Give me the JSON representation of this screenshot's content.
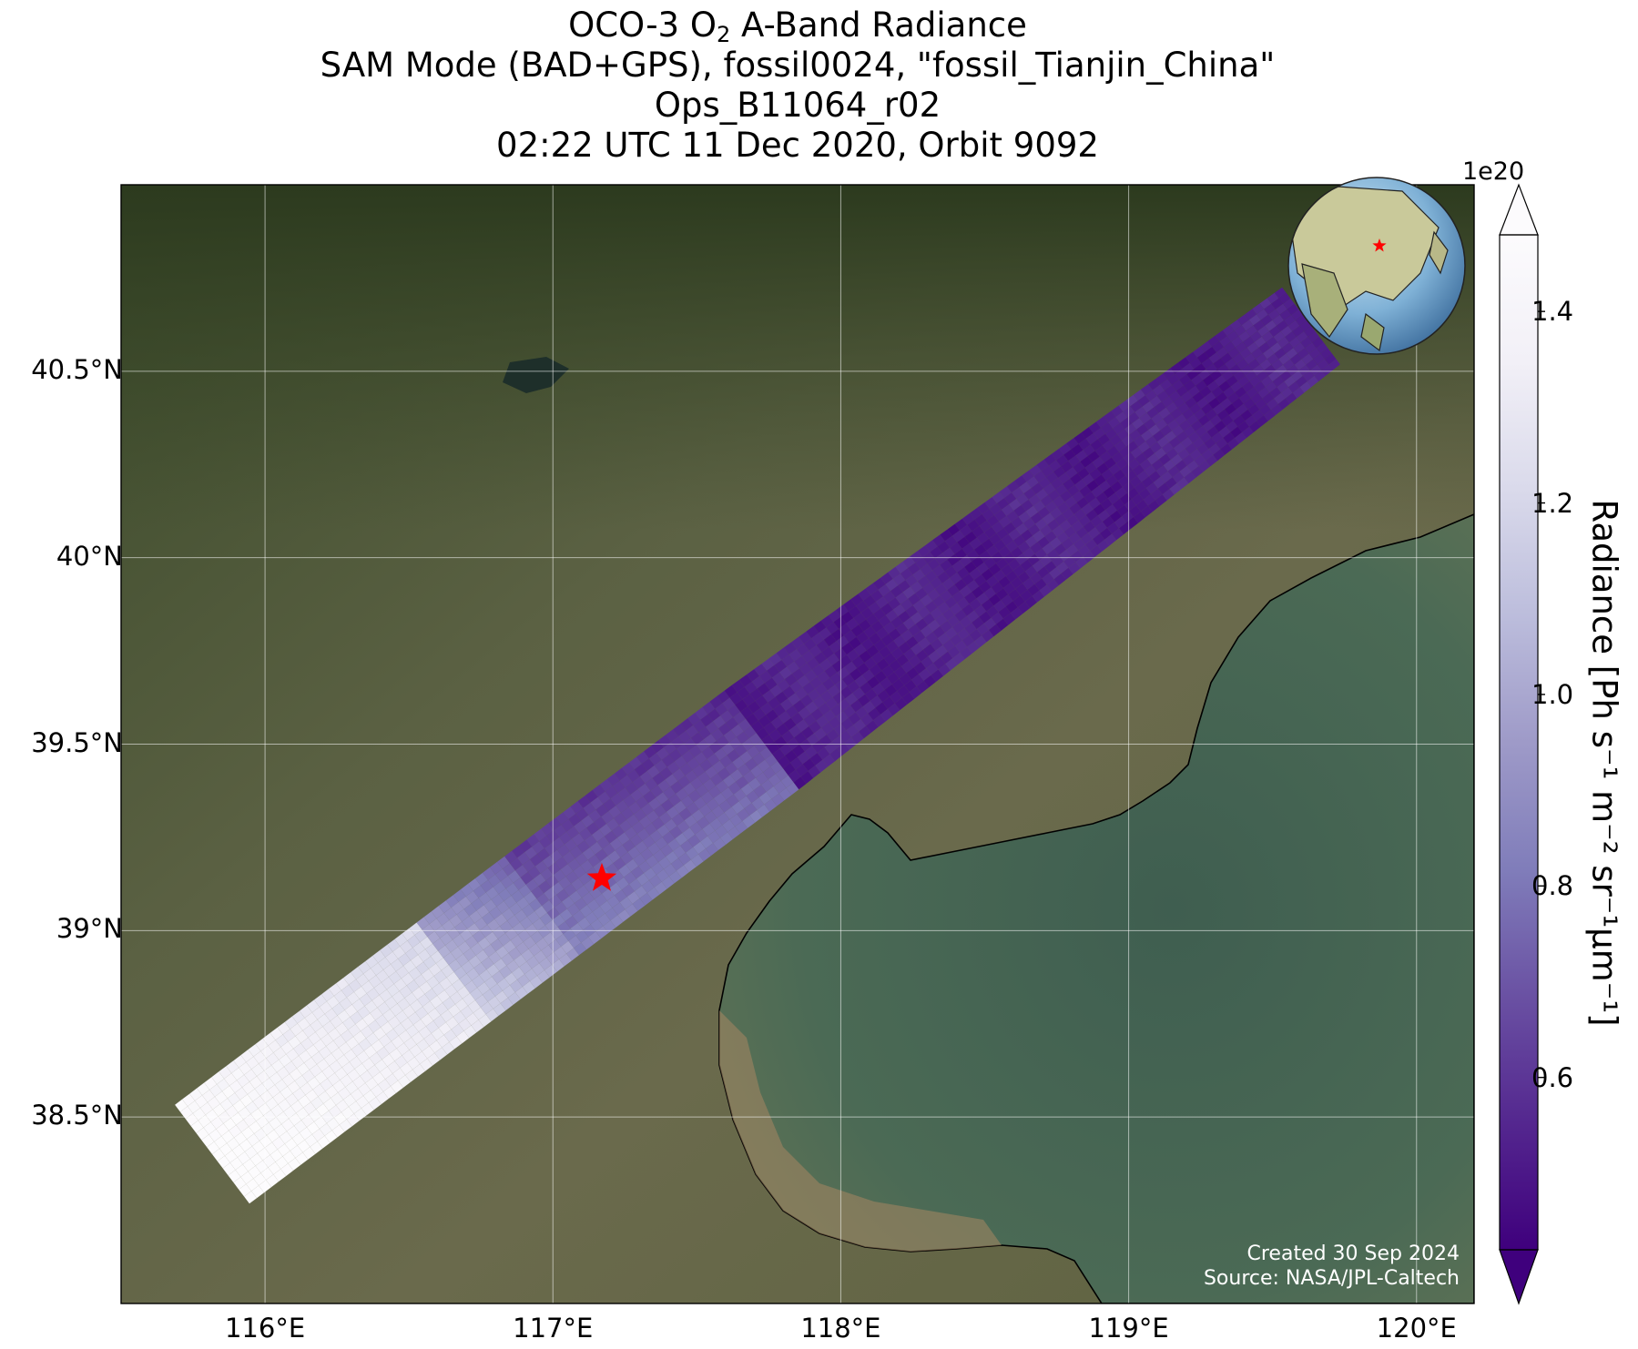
{
  "title": {
    "line1_prefix": "OCO-3 O",
    "line1_sub": "2",
    "line1_suffix": " A-Band Radiance",
    "line2": "SAM Mode (BAD+GPS), fossil0024, \"fossil_Tianjin_China\"",
    "line3": "Ops_B11064_r02",
    "line4": "02:22 UTC 11 Dec 2020, Orbit 9092"
  },
  "map": {
    "extent": {
      "lon_min": 115.5,
      "lon_max": 120.2,
      "lat_min": 38.0,
      "lat_max": 41.0
    },
    "gridlines": true,
    "lat_ticks": [
      40.5,
      40.0,
      39.5,
      39.0,
      38.5
    ],
    "lat_tick_labels": [
      "40.5°N",
      "40°N",
      "39.5°N",
      "39°N",
      "38.5°N"
    ],
    "lon_ticks": [
      116,
      117,
      118,
      119,
      120
    ],
    "lon_tick_labels": [
      "116°E",
      "117°E",
      "118°E",
      "119°E",
      "120°E"
    ],
    "target_marker": {
      "lon": 117.17,
      "lat": 39.14,
      "color": "#ff0000",
      "icon": "star-icon"
    },
    "basemap": "satellite-imagery",
    "inset_globe": {
      "marker_icon": "star-icon",
      "marker_color": "#ff0000"
    }
  },
  "credit": {
    "line1": "Created 30 Sep 2024",
    "line2": "Source: NASA/JPL-Caltech"
  },
  "colorbar": {
    "colormap": "Purples_r",
    "exponent_label": "1e20",
    "ticks": [
      0.6,
      0.8,
      1.0,
      1.2,
      1.4
    ],
    "tick_labels": [
      "0.6",
      "0.8",
      "1.0",
      "1.2",
      "1.4"
    ],
    "range": [
      0.42,
      1.48
    ],
    "extend": "both",
    "label_prefix": "Radiance [Ph s",
    "label_text": "Radiance [Ph s⁻¹ m⁻² sr⁻¹μm⁻¹]",
    "colors": [
      "#3f007d",
      "#54278f",
      "#6a51a3",
      "#807dba",
      "#9e9ac8",
      "#bcbddc",
      "#dadaeb",
      "#f2f0f7",
      "#fcfbfd"
    ]
  }
}
